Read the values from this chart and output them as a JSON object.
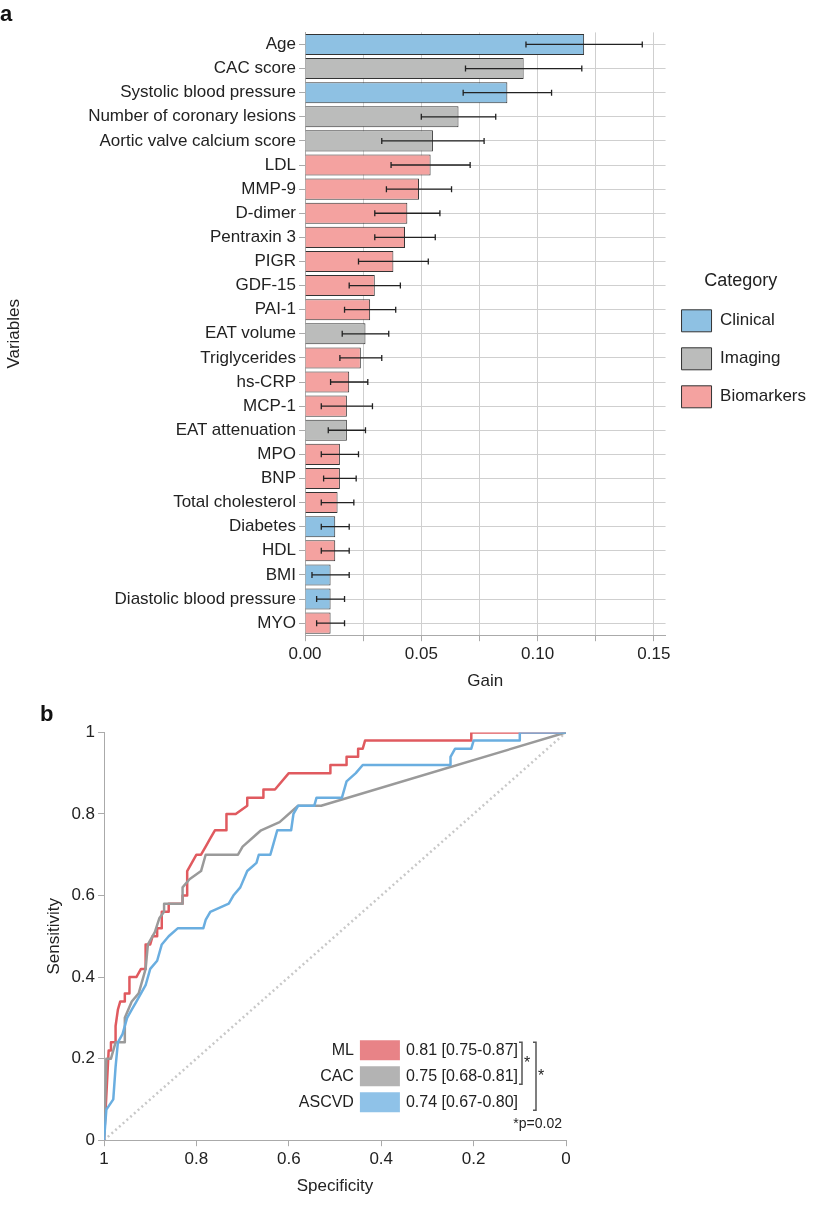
{
  "chart_data": [
    {
      "type": "bar",
      "title": "a",
      "orientation": "horizontal",
      "xlabel": "Gain",
      "ylabel": "Variables",
      "legend_title": "Category",
      "legend": "right",
      "grid": true,
      "categories": [
        "Age",
        "CAC score",
        "Systolic blood pressure",
        "Number of coronary lesions",
        "Aortic valve calcium score",
        "LDL",
        "MMP-9",
        "D-dimer",
        "Pentraxin 3",
        "PIGR",
        "GDF-15",
        "PAI-1",
        "EAT volume",
        "Triglycerides",
        "hs-CRP",
        "MCP-1",
        "EAT attenuation",
        "MPO",
        "BNP",
        "Total cholesterol",
        "Diabetes",
        "HDL",
        "BMI",
        "Diastolic blood pressure",
        "MYO"
      ],
      "xlim": [
        0,
        0.155
      ],
      "xticks": [
        {
          "value": 0,
          "label": "0.00"
        },
        {
          "value": 0.025,
          "label": null
        },
        {
          "value": 0.05,
          "label": "0.05"
        },
        {
          "value": 0.075,
          "label": null
        },
        {
          "value": 0.1,
          "label": "0.10"
        },
        {
          "value": 0.125,
          "label": null
        },
        {
          "value": 0.15,
          "label": "0.15"
        }
      ],
      "series": [
        {
          "name": "Clinical",
          "color": "#8ec1e3",
          "values": [
            0.12,
            null,
            0.087,
            null,
            null,
            null,
            null,
            null,
            null,
            null,
            null,
            null,
            null,
            null,
            null,
            null,
            null,
            null,
            null,
            null,
            0.013,
            null,
            0.011,
            0.011,
            null
          ],
          "errors": [
            0.025,
            null,
            0.019,
            null,
            null,
            null,
            null,
            null,
            null,
            null,
            null,
            null,
            null,
            null,
            null,
            null,
            null,
            null,
            null,
            null,
            0.006,
            null,
            0.008,
            0.006,
            null
          ]
        },
        {
          "name": "Imaging",
          "color": "#bbbcbb",
          "values": [
            null,
            0.094,
            null,
            0.066,
            0.055,
            null,
            null,
            null,
            null,
            null,
            null,
            null,
            0.026,
            null,
            null,
            null,
            0.018,
            null,
            null,
            null,
            null,
            null,
            null,
            null,
            null
          ],
          "errors": [
            null,
            0.025,
            null,
            0.016,
            0.022,
            null,
            null,
            null,
            null,
            null,
            null,
            null,
            0.01,
            null,
            null,
            null,
            0.008,
            null,
            null,
            null,
            null,
            null,
            null,
            null,
            null
          ]
        },
        {
          "name": "Biomarkers",
          "color": "#f4a2a0",
          "values": [
            null,
            null,
            null,
            null,
            null,
            0.054,
            0.049,
            0.044,
            0.043,
            0.038,
            0.03,
            0.028,
            null,
            0.024,
            0.019,
            0.018,
            null,
            0.015,
            0.015,
            0.014,
            null,
            0.013,
            null,
            null,
            0.011
          ],
          "errors": [
            null,
            null,
            null,
            null,
            null,
            0.017,
            0.014,
            0.014,
            0.013,
            0.015,
            0.011,
            0.011,
            null,
            0.009,
            0.008,
            0.011,
            null,
            0.008,
            0.007,
            0.007,
            null,
            0.006,
            null,
            null,
            0.006
          ]
        }
      ]
    },
    {
      "type": "line",
      "title": "b",
      "xlabel": "Specificity",
      "ylabel": "Sensitivity",
      "legend": "bottom right",
      "grid": false,
      "xlim": [
        1,
        0
      ],
      "xticks": [
        1,
        0.8,
        0.6,
        0.4,
        0.2,
        0
      ],
      "ylim": [
        0,
        1
      ],
      "yticks": [
        0,
        0.2,
        0.4,
        0.6,
        0.8,
        1
      ],
      "annotations": [
        "0.81 [0.75-0.87]",
        "0.75 [0.68-0.81]",
        "0.74 [0.67-0.80]",
        "*",
        "*",
        "*p=0.02"
      ],
      "series": [
        {
          "name": "ASCVD",
          "color": "#6aaee0",
          "x": [
            1,
            0.995,
            0.98,
            0.975,
            0.97,
            0.96,
            0.95,
            0.94,
            0.93,
            0.92,
            0.91,
            0.9,
            0.885,
            0.875,
            0.86,
            0.84,
            0.785,
            0.78,
            0.77,
            0.73,
            0.72,
            0.705,
            0.69,
            0.67,
            0.665,
            0.64,
            0.635,
            0.625,
            0.595,
            0.59,
            0.58,
            0.545,
            0.54,
            0.485,
            0.475,
            0.455,
            0.44,
            0.25,
            0.25,
            0.24,
            0.205,
            0.2,
            0.1,
            0.1,
            0
          ],
          "values": [
            0,
            0.075,
            0.1,
            0.18,
            0.24,
            0.26,
            0.3,
            0.32,
            0.34,
            0.36,
            0.38,
            0.42,
            0.44,
            0.48,
            0.5,
            0.52,
            0.52,
            0.54,
            0.56,
            0.58,
            0.6,
            0.62,
            0.66,
            0.68,
            0.7,
            0.7,
            0.72,
            0.76,
            0.76,
            0.8,
            0.82,
            0.82,
            0.84,
            0.84,
            0.88,
            0.9,
            0.92,
            0.92,
            0.94,
            0.96,
            0.96,
            0.98,
            0.98,
            1,
            1
          ]
        },
        {
          "name": "CAC",
          "color": "#9a9a9a",
          "x": [
            1,
            0.995,
            0.985,
            0.975,
            0.955,
            0.955,
            0.94,
            0.925,
            0.915,
            0.91,
            0.905,
            0.89,
            0.88,
            0.87,
            0.87,
            0.83,
            0.83,
            0.815,
            0.79,
            0.78,
            0.71,
            0.7,
            0.66,
            0.62,
            0.58,
            0.53,
            0
          ],
          "values": [
            0,
            0.2,
            0.2,
            0.24,
            0.24,
            0.3,
            0.34,
            0.36,
            0.4,
            0.42,
            0.48,
            0.51,
            0.545,
            0.56,
            0.58,
            0.58,
            0.62,
            0.64,
            0.66,
            0.7,
            0.7,
            0.72,
            0.76,
            0.78,
            0.82,
            0.82,
            1
          ]
        },
        {
          "name": "ML",
          "color": "#e05a5f",
          "x": [
            1,
            0.99,
            0.985,
            0.985,
            0.975,
            0.975,
            0.97,
            0.965,
            0.955,
            0.955,
            0.945,
            0.945,
            0.93,
            0.92,
            0.91,
            0.91,
            0.9,
            0.895,
            0.885,
            0.885,
            0.875,
            0.875,
            0.86,
            0.86,
            0.83,
            0.83,
            0.82,
            0.82,
            0.81,
            0.8,
            0.79,
            0.78,
            0.77,
            0.76,
            0.735,
            0.735,
            0.715,
            0.69,
            0.69,
            0.655,
            0.655,
            0.63,
            0.6,
            0.51,
            0.51,
            0.475,
            0.475,
            0.45,
            0.45,
            0.44,
            0.435,
            0.205,
            0.205,
            0
          ],
          "values": [
            0,
            0.22,
            0.22,
            0.24,
            0.24,
            0.28,
            0.32,
            0.34,
            0.34,
            0.36,
            0.36,
            0.4,
            0.4,
            0.42,
            0.42,
            0.48,
            0.48,
            0.5,
            0.5,
            0.52,
            0.52,
            0.56,
            0.56,
            0.58,
            0.58,
            0.6,
            0.6,
            0.66,
            0.68,
            0.7,
            0.7,
            0.72,
            0.74,
            0.76,
            0.76,
            0.8,
            0.8,
            0.82,
            0.84,
            0.84,
            0.86,
            0.86,
            0.9,
            0.9,
            0.92,
            0.92,
            0.94,
            0.94,
            0.96,
            0.96,
            0.98,
            0.98,
            1,
            1
          ]
        },
        {
          "line_style": "dotted",
          "color": "#c8c8c8",
          "x": [
            1,
            0
          ],
          "values": [
            0,
            1
          ]
        }
      ]
    }
  ]
}
